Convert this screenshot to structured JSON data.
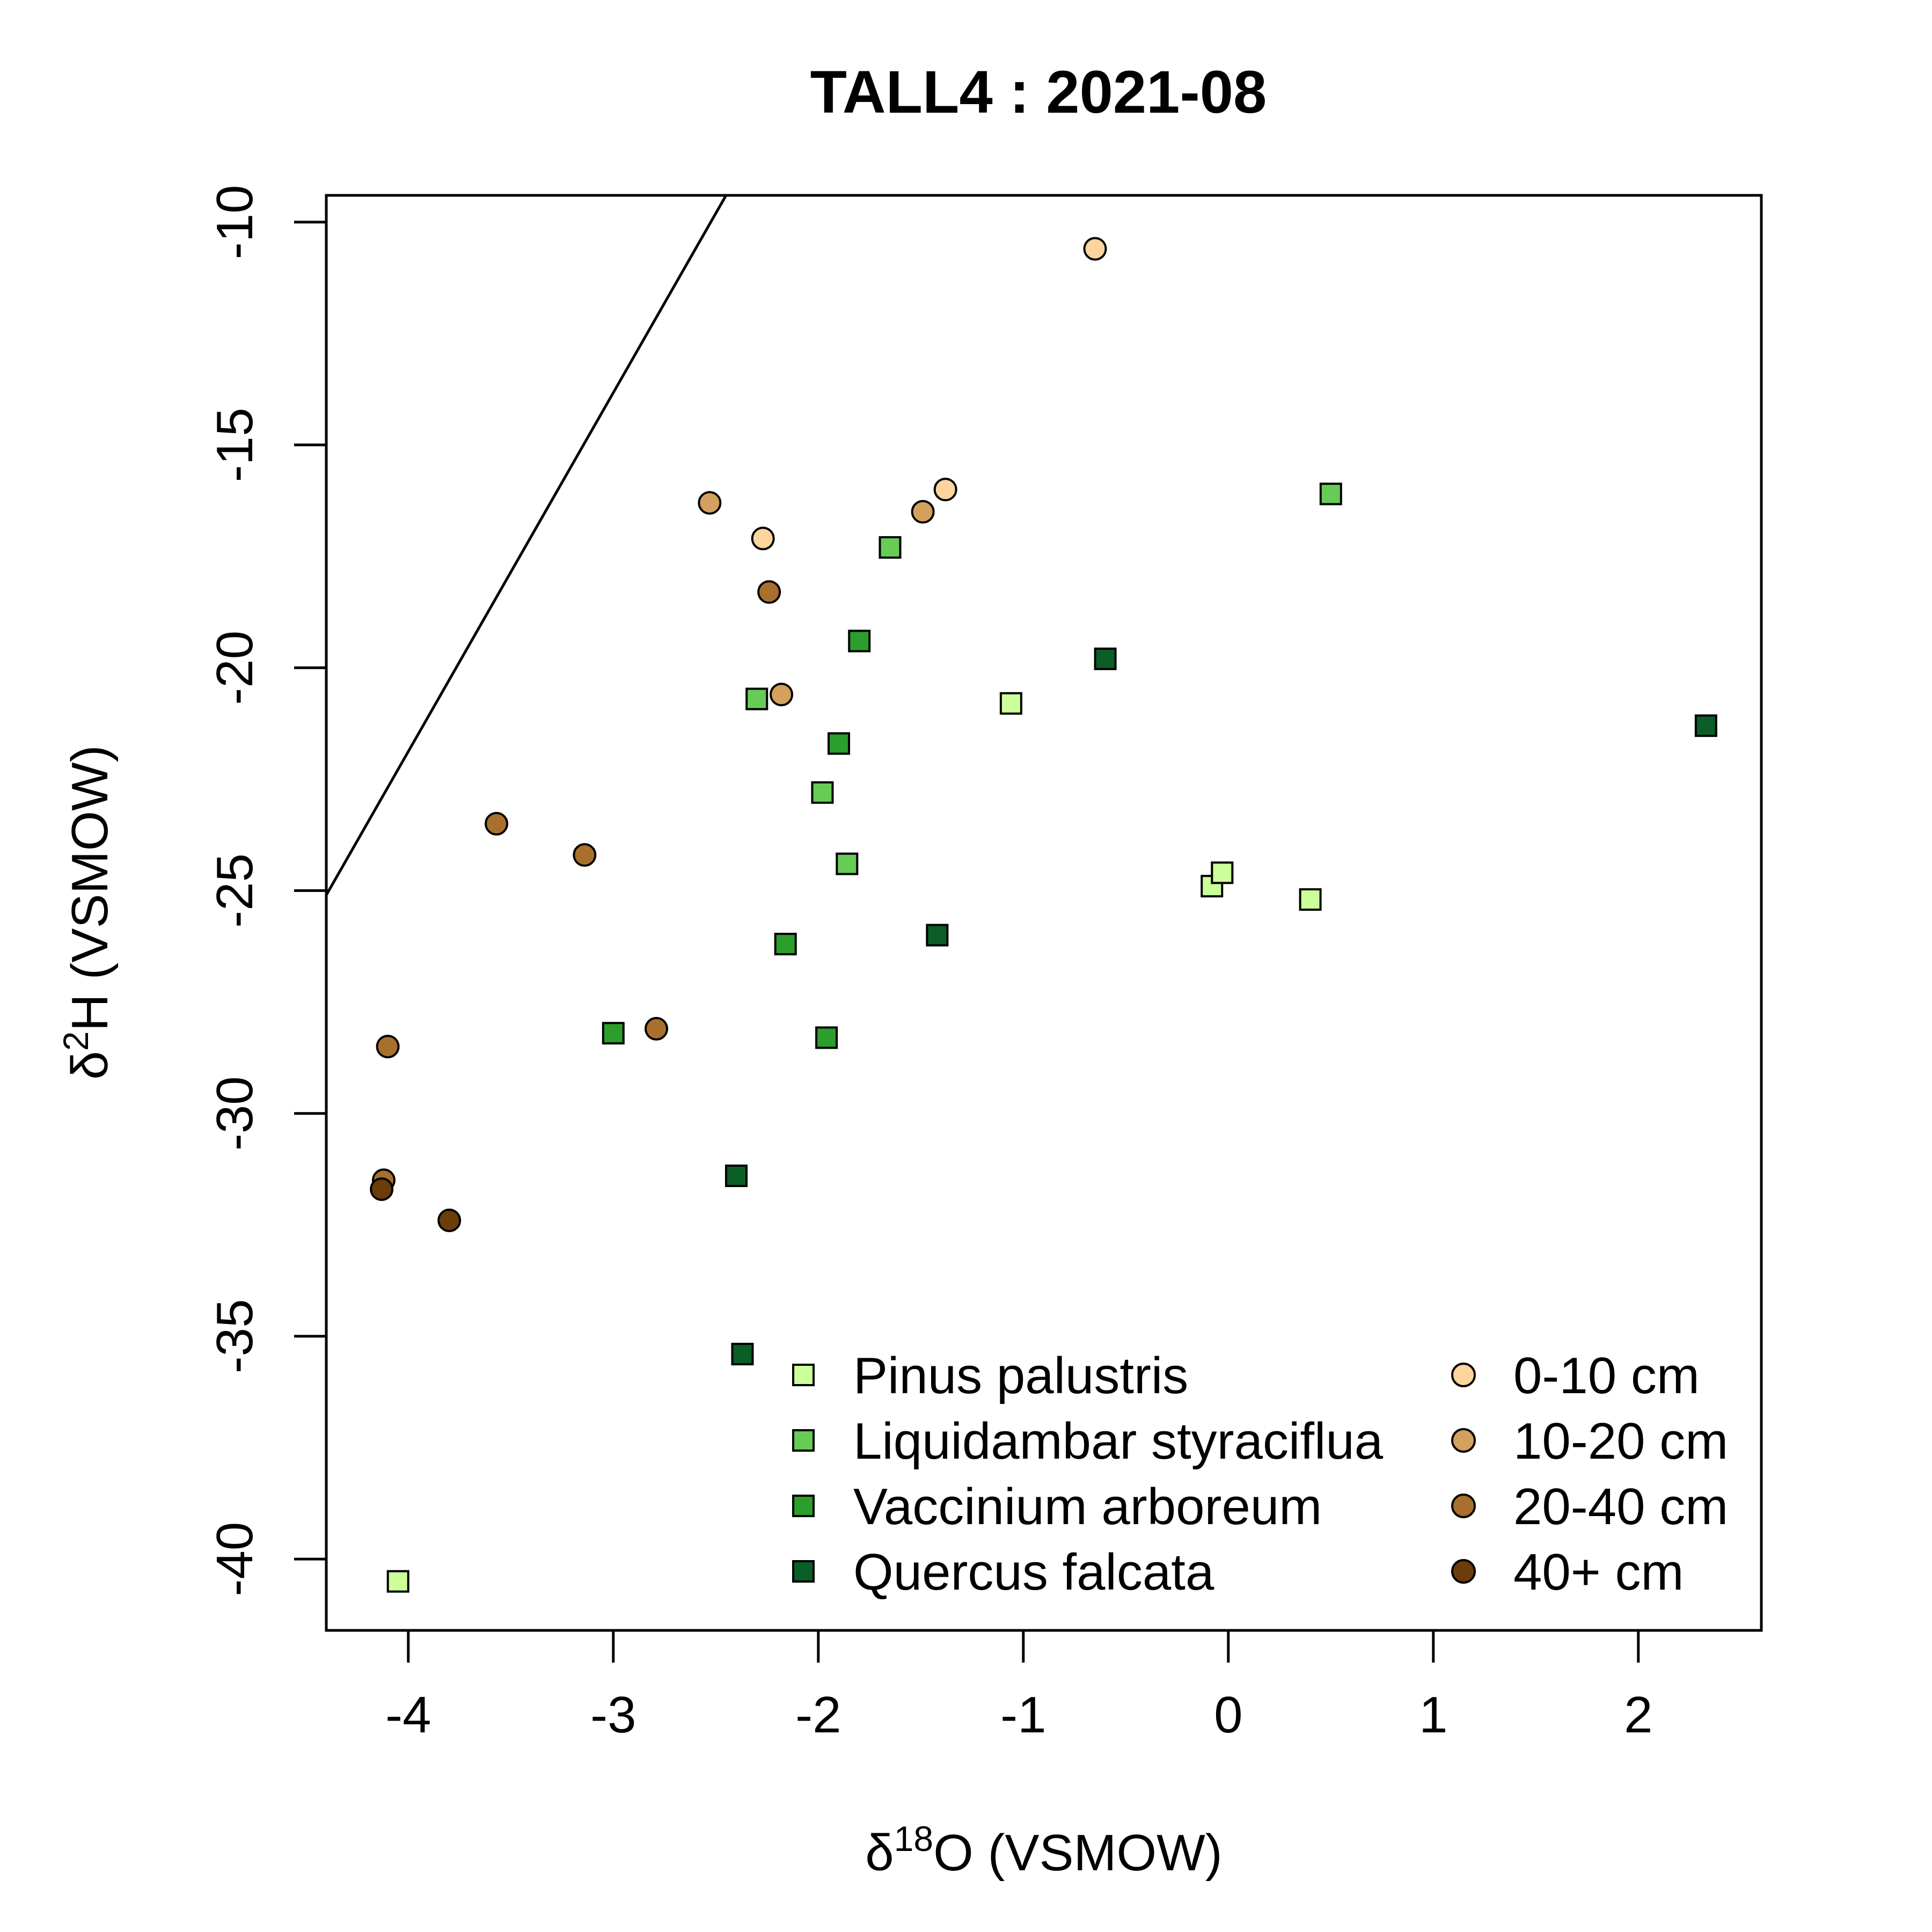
{
  "chart_data": {
    "type": "scatter",
    "title": "TALL4 : 2021-08",
    "xlabel": {
      "delta": "δ",
      "sup": "18",
      "rest": "O (VSMOW)"
    },
    "ylabel": {
      "delta": "δ",
      "sup": "2",
      "rest": "H (VSMOW)"
    },
    "xlim": [
      -4.4,
      2.6
    ],
    "ylim": [
      -41.6,
      -9.4
    ],
    "x_ticks": [
      -4,
      -3,
      -2,
      -1,
      0,
      1,
      2
    ],
    "x_tick_labels": [
      "-4",
      "-3",
      "-2",
      "-1",
      "0",
      "1",
      "2"
    ],
    "y_ticks": [
      -40,
      -35,
      -30,
      -25,
      -20,
      -15,
      -10
    ],
    "y_tick_labels": [
      "-40",
      "-35",
      "-30",
      "-25",
      "-20",
      "-15",
      "-10"
    ],
    "grid": false,
    "legend_position": "bottom-right",
    "reference_line": {
      "x": [
        -4.4,
        -2.45
      ],
      "y": [
        -25.1,
        -9.4
      ]
    },
    "series": [
      {
        "name": "Pinus palustris",
        "marker": "square",
        "color": "#ccff99",
        "points": [
          [
            -4.05,
            -40.5
          ],
          [
            -1.06,
            -20.8
          ],
          [
            -0.08,
            -24.9
          ],
          [
            -0.03,
            -24.6
          ],
          [
            0.4,
            -25.2
          ]
        ]
      },
      {
        "name": "Liquidambar styraciflua",
        "marker": "square",
        "color": "#66cc55",
        "points": [
          [
            -2.3,
            -20.7
          ],
          [
            -1.65,
            -17.3
          ],
          [
            -1.98,
            -22.8
          ],
          [
            -1.86,
            -24.4
          ],
          [
            0.5,
            -16.1
          ]
        ]
      },
      {
        "name": "Vaccinium arboreum",
        "marker": "square",
        "color": "#2b9e2b",
        "points": [
          [
            -1.8,
            -19.4
          ],
          [
            -1.9,
            -21.7
          ],
          [
            -2.16,
            -26.2
          ],
          [
            -3.0,
            -28.2
          ],
          [
            -1.96,
            -28.3
          ]
        ]
      },
      {
        "name": "Quercus falcata",
        "marker": "square",
        "color": "#0a5e26",
        "points": [
          [
            -0.6,
            -19.8
          ],
          [
            -1.42,
            -26.0
          ],
          [
            -2.4,
            -31.4
          ],
          [
            -2.37,
            -35.4
          ],
          [
            2.33,
            -21.3
          ]
        ]
      },
      {
        "name": "0-10 cm",
        "marker": "circle",
        "color": "#fdd49e",
        "points": [
          [
            -0.65,
            -10.6
          ],
          [
            -1.38,
            -16.0
          ],
          [
            -2.27,
            -17.1
          ]
        ]
      },
      {
        "name": "10-20 cm",
        "marker": "circle",
        "color": "#d4a05e",
        "points": [
          [
            -2.53,
            -16.3
          ],
          [
            -1.49,
            -16.5
          ],
          [
            -2.18,
            -20.6
          ]
        ]
      },
      {
        "name": "20-40 cm",
        "marker": "circle",
        "color": "#a8702c",
        "points": [
          [
            -2.24,
            -18.3
          ],
          [
            -3.57,
            -23.5
          ],
          [
            -3.14,
            -24.2
          ],
          [
            -2.79,
            -28.1
          ],
          [
            -4.1,
            -28.5
          ],
          [
            -4.12,
            -31.5
          ]
        ]
      },
      {
        "name": "40+ cm",
        "marker": "circle",
        "color": "#6b3d0a",
        "points": [
          [
            -4.13,
            -31.7
          ],
          [
            -3.8,
            -32.4
          ]
        ]
      }
    ]
  }
}
